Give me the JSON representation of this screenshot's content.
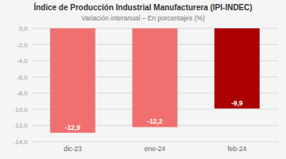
{
  "chart_data": {
    "type": "bar",
    "title": "Índice de Producción Industrial Manufacturera (IPI-INDEC)",
    "subtitle": "Variación interanual – En porcentajes (%)",
    "categories": [
      "dic-23",
      "ene-24",
      "feb-24"
    ],
    "values": [
      -12.9,
      -12.2,
      -9.9
    ],
    "value_labels": [
      "-12,9",
      "-12,2",
      "-9,9"
    ],
    "colors": [
      "#f07070",
      "#f07070",
      "#aa0000"
    ],
    "ylim": [
      -14,
      0
    ],
    "yticks": [
      {
        "value": 0,
        "label": "0,0"
      },
      {
        "value": -2,
        "label": "-2,0"
      },
      {
        "value": -4,
        "label": "-4,0"
      },
      {
        "value": -6,
        "label": "-6,0"
      },
      {
        "value": -8,
        "label": "-8,0"
      },
      {
        "value": -10,
        "label": "-10,0"
      },
      {
        "value": -12,
        "label": "-12,0"
      },
      {
        "value": -14,
        "label": "-14,0"
      }
    ],
    "grid": true,
    "data_labels": true
  }
}
